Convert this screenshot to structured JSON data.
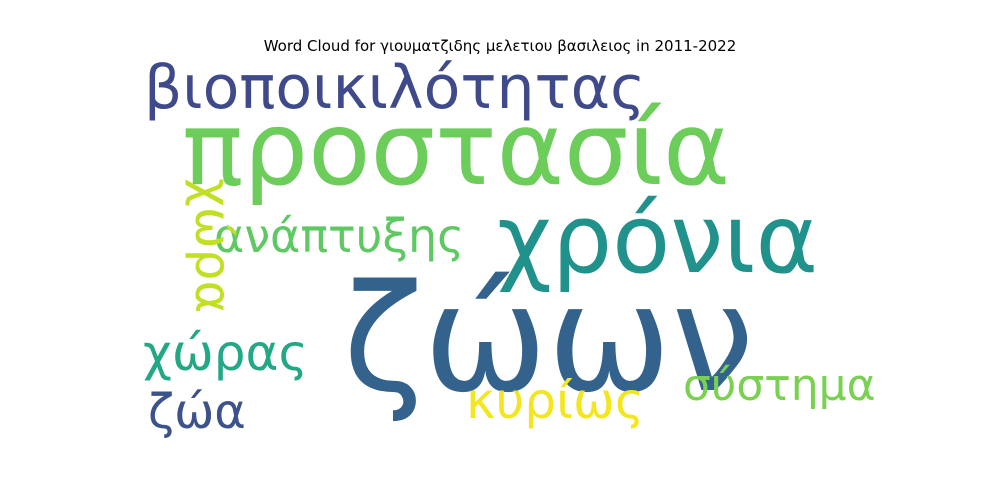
{
  "title": "Word Cloud for γιουματζιδης μελετιου βασιλειος in 2011-2022",
  "chart_data": {
    "type": "wordcloud",
    "title": "Word Cloud for γιουματζιδης μελετιου βασιλειος in 2011-2022",
    "words": [
      {
        "text": "ζώων",
        "color": "#33638d"
      },
      {
        "text": "χρόνια",
        "color": "#21918c"
      },
      {
        "text": "προστασία",
        "color": "#6ccd5a"
      },
      {
        "text": "βιοποικιλότητας",
        "color": "#3e4a89"
      },
      {
        "text": "ανάπτυξης",
        "color": "#5ec962"
      },
      {
        "text": "χώρα",
        "color": "#c2df23"
      },
      {
        "text": "χώρας",
        "color": "#22a884"
      },
      {
        "text": "κυρίως",
        "color": "#f4e61e"
      },
      {
        "text": "σύστημα",
        "color": "#7ad151"
      },
      {
        "text": "ζώα",
        "color": "#3b528b"
      }
    ]
  }
}
